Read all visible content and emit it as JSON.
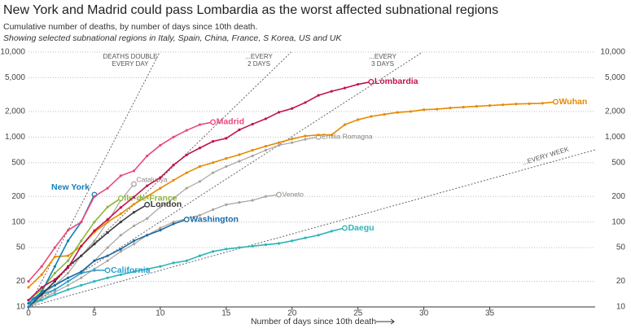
{
  "chart_data": {
    "type": "line",
    "title": "New York and Madrid could pass Lombardia as the worst affected subnational regions",
    "subtitle": "Cumulative number of deaths, by number of days since 10th death.",
    "note": "Showing selected subnational regions in Italy, Spain, China, France, S Korea, US and UK",
    "x_label": "Number of days since 10th death",
    "log_scale": true,
    "grid": true,
    "xlim": [
      0,
      43
    ],
    "xticks": [
      0,
      5,
      10,
      15,
      20,
      25,
      30,
      35
    ],
    "ylim": [
      10,
      10000
    ],
    "yticks": [
      10,
      20,
      50,
      100,
      200,
      500,
      {
        "value": 1000,
        "label": "1,000"
      },
      {
        "value": 2000,
        "label": "2,000"
      },
      {
        "value": 5000,
        "label": "5,000"
      },
      {
        "value": 10000,
        "label": "10,000"
      }
    ],
    "reference_lines": [
      {
        "label": [
          "DEATHS DOUBLE",
          "EVERY DAY"
        ],
        "doubling_days": 1
      },
      {
        "label": [
          "...EVERY",
          "2 DAYS"
        ],
        "doubling_days": 2
      },
      {
        "label": [
          "...EVERY",
          "3 DAYS"
        ],
        "doubling_days": 3
      },
      {
        "label": [
          "...EVERY WEEK"
        ],
        "doubling_days": 7
      }
    ],
    "x": [
      0,
      1,
      2,
      3,
      4,
      5,
      6,
      7,
      8,
      9,
      10,
      11,
      12,
      13,
      14,
      15,
      16,
      17,
      18,
      19,
      20,
      21,
      22,
      23,
      24,
      25,
      26,
      27,
      28,
      29,
      30,
      31,
      32,
      33,
      34,
      35,
      36,
      37,
      38,
      39,
      40
    ],
    "series": [
      {
        "name": "Emilia Romagna",
        "color": "#a8a39d",
        "emphasis": false,
        "values": [
          10,
          13,
          16,
          20,
          25,
          35,
          50,
          70,
          90,
          110,
          150,
          190,
          250,
          300,
          380,
          450,
          520,
          600,
          700,
          800,
          860,
          940,
          1000,
          null,
          null,
          null,
          null,
          null,
          null,
          null,
          null,
          null,
          null,
          null,
          null,
          null,
          null,
          null,
          null,
          null,
          null
        ]
      },
      {
        "name": "Catalunya",
        "color": "#a8a39d",
        "emphasis": false,
        "values": [
          10,
          14,
          18,
          25,
          40,
          60,
          100,
          180,
          280,
          null,
          null,
          null,
          null,
          null,
          null,
          null,
          null,
          null,
          null,
          null,
          null,
          null,
          null,
          null,
          null,
          null,
          null,
          null,
          null,
          null,
          null,
          null,
          null,
          null,
          null,
          null,
          null,
          null,
          null,
          null,
          null
        ]
      },
      {
        "name": "Veneto",
        "color": "#a8a39d",
        "emphasis": false,
        "values": [
          10,
          12,
          15,
          18,
          22,
          28,
          35,
          45,
          55,
          70,
          85,
          100,
          110,
          120,
          140,
          160,
          170,
          180,
          200,
          210,
          null,
          null,
          null,
          null,
          null,
          null,
          null,
          null,
          null,
          null,
          null,
          null,
          null,
          null,
          null,
          null,
          null,
          null,
          null,
          null,
          null
        ]
      },
      {
        "name": "Wuhan",
        "color": "#e68a00",
        "emphasis": true,
        "values": [
          17,
          24,
          39,
          40,
          52,
          76,
          100,
          125,
          162,
          200,
          250,
          310,
          380,
          450,
          500,
          560,
          620,
          700,
          780,
          860,
          950,
          1030,
          1060,
          1060,
          1400,
          1600,
          1750,
          1850,
          1950,
          2000,
          2100,
          2130,
          2200,
          2250,
          2300,
          2350,
          2400,
          2450,
          2470,
          2500,
          2600
        ]
      },
      {
        "name": "Daegu",
        "color": "#2bb5b8",
        "emphasis": true,
        "values": [
          11,
          12,
          14,
          16,
          18,
          20,
          22,
          24,
          26,
          28,
          30,
          33,
          35,
          40,
          45,
          48,
          50,
          52,
          54,
          56,
          60,
          65,
          70,
          78,
          85,
          null,
          null,
          null,
          null,
          null,
          null,
          null,
          null,
          null,
          null,
          null,
          null,
          null,
          null,
          null,
          null
        ]
      },
      {
        "name": "California",
        "color": "#2a9fd0",
        "emphasis": true,
        "values": [
          12,
          14,
          16,
          20,
          25,
          27,
          27,
          null,
          null,
          null,
          null,
          null,
          null,
          null,
          null,
          null,
          null,
          null,
          null,
          null,
          null,
          null,
          null,
          null,
          null,
          null,
          null,
          null,
          null,
          null,
          null,
          null,
          null,
          null,
          null,
          null,
          null,
          null,
          null,
          null,
          null
        ]
      },
      {
        "name": "Washington",
        "color": "#1b6aa5",
        "emphasis": true,
        "values": [
          11,
          15,
          18,
          22,
          26,
          35,
          40,
          48,
          60,
          70,
          80,
          95,
          107,
          null,
          null,
          null,
          null,
          null,
          null,
          null,
          null,
          null,
          null,
          null,
          null,
          null,
          null,
          null,
          null,
          null,
          null,
          null,
          null,
          null,
          null,
          null,
          null,
          null,
          null,
          null,
          null
        ]
      },
      {
        "name": "London",
        "color": "#3a3a3a",
        "emphasis": true,
        "values": [
          10,
          14,
          20,
          30,
          40,
          55,
          75,
          100,
          130,
          160,
          null,
          null,
          null,
          null,
          null,
          null,
          null,
          null,
          null,
          null,
          null,
          null,
          null,
          null,
          null,
          null,
          null,
          null,
          null,
          null,
          null,
          null,
          null,
          null,
          null,
          null,
          null,
          null,
          null,
          null,
          null
        ]
      },
      {
        "name": "Ile-de-France",
        "color": "#8db63c",
        "emphasis": true,
        "values": [
          12,
          16,
          25,
          35,
          60,
          100,
          150,
          190,
          null,
          null,
          null,
          null,
          null,
          null,
          null,
          null,
          null,
          null,
          null,
          null,
          null,
          null,
          null,
          null,
          null,
          null,
          null,
          null,
          null,
          null,
          null,
          null,
          null,
          null,
          null,
          null,
          null,
          null,
          null,
          null,
          null
        ]
      },
      {
        "name": "New York",
        "color": "#1380b8",
        "emphasis": true,
        "values": [
          10,
          15,
          30,
          60,
          100,
          210,
          null,
          null,
          null,
          null,
          null,
          null,
          null,
          null,
          null,
          null,
          null,
          null,
          null,
          null,
          null,
          null,
          null,
          null,
          null,
          null,
          null,
          null,
          null,
          null,
          null,
          null,
          null,
          null,
          null,
          null,
          null,
          null,
          null,
          null,
          null
        ]
      },
      {
        "name": "Madrid",
        "color": "#e9487d",
        "emphasis": true,
        "values": [
          20,
          30,
          50,
          80,
          100,
          200,
          250,
          350,
          400,
          600,
          800,
          1000,
          1200,
          1400,
          1500,
          null,
          null,
          null,
          null,
          null,
          null,
          null,
          null,
          null,
          null,
          null,
          null,
          null,
          null,
          null,
          null,
          null,
          null,
          null,
          null,
          null,
          null,
          null,
          null,
          null,
          null
        ]
      },
      {
        "name": "Lombardia",
        "color": "#c1124f",
        "emphasis": true,
        "values": [
          12,
          17,
          21,
          29,
          52,
          79,
          107,
          148,
          197,
          267,
          333,
          468,
          617,
          744,
          890,
          966,
          1218,
          1420,
          1640,
          1959,
          2168,
          2549,
          3095,
          3456,
          3776,
          4178,
          4474,
          null,
          null,
          null,
          null,
          null,
          null,
          null,
          null,
          null,
          null,
          null,
          null,
          null,
          null
        ]
      }
    ]
  }
}
